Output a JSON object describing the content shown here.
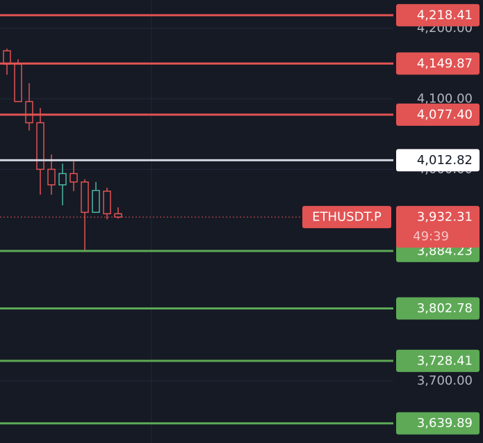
{
  "chart_data": {
    "type": "candlestick",
    "ylim": [
      3612,
      4240
    ],
    "yticks": [
      {
        "value": 4200,
        "label": "4,200.00"
      },
      {
        "value": 4100,
        "label": "4,100.00"
      },
      {
        "value": 4000,
        "label": "4,000.00"
      },
      {
        "value": 3700,
        "label": "3,700.00"
      }
    ],
    "grid": true,
    "up_color": "#4db6a3",
    "down_color": "#e25353",
    "open": [
      4168,
      4149,
      4096,
      4066,
      4000,
      3978,
      3994,
      3982,
      3939,
      3969,
      3937
    ],
    "high": [
      4171,
      4156,
      4122,
      4087,
      4021,
      4008,
      4011,
      3986,
      3982,
      3974,
      3946
    ],
    "low": [
      4134,
      4096,
      4055,
      3964,
      3964,
      3949,
      3969,
      3885,
      3939,
      3929,
      3930
    ],
    "close": [
      4149,
      4096,
      4066,
      4000,
      3978,
      3994,
      3982,
      3939,
      3970,
      3937,
      3932.31
    ],
    "levels": {
      "values": [
        4218.41,
        4149.87,
        4077.4,
        4012.82,
        3884.23,
        3802.78,
        3728.41,
        3639.89
      ],
      "value_labels": [
        "4,218.41",
        "4,149.87",
        "4,077.40",
        "4,012.82",
        "3,884.23",
        "3,802.78",
        "3,728.41",
        "3,639.89"
      ],
      "colors": [
        "#e25353",
        "#e25353",
        "#e25353",
        "#ffffff",
        "#5da956",
        "#5da956",
        "#5da956",
        "#5da956"
      ]
    },
    "current": {
      "name": "ETHUSDT.P",
      "value": 3932.31,
      "value_label": "3,932.31",
      "countdown": "49:39",
      "color": "#e25353"
    }
  }
}
